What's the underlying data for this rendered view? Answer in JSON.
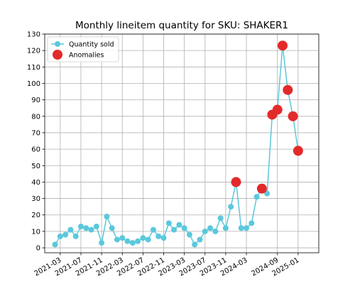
{
  "chart_data": {
    "type": "line",
    "title": "Monthly lineitem quantity for SKU: SHAKER1",
    "xlabel": "",
    "ylabel": "",
    "ylim": [
      -3,
      130
    ],
    "yticks": [
      0,
      10,
      20,
      30,
      40,
      50,
      60,
      70,
      80,
      90,
      100,
      110,
      120,
      130
    ],
    "xlim": [
      "2020-12",
      "2025-05"
    ],
    "xticks": [
      "2021-03",
      "2021-07",
      "2021-11",
      "2022-03",
      "2022-07",
      "2022-11",
      "2023-03",
      "2023-07",
      "2023-11",
      "2024-03",
      "2024-09",
      "2025-01"
    ],
    "grid": true,
    "legend_position": "top-left",
    "colors": {
      "line": "#5bc8dc",
      "anomaly": "#e32a2a",
      "grid": "#b0b0b0"
    },
    "series": [
      {
        "name": "Quantity sold",
        "points": [
          [
            "2021-02",
            2
          ],
          [
            "2021-03",
            7
          ],
          [
            "2021-04",
            8
          ],
          [
            "2021-05",
            11
          ],
          [
            "2021-06",
            7
          ],
          [
            "2021-07",
            13
          ],
          [
            "2021-08",
            12
          ],
          [
            "2021-09",
            11
          ],
          [
            "2021-10",
            13
          ],
          [
            "2021-11",
            3
          ],
          [
            "2021-12",
            19
          ],
          [
            "2022-01",
            12
          ],
          [
            "2022-02",
            5
          ],
          [
            "2022-03",
            6
          ],
          [
            "2022-04",
            4
          ],
          [
            "2022-05",
            3
          ],
          [
            "2022-06",
            4
          ],
          [
            "2022-07",
            6
          ],
          [
            "2022-08",
            5
          ],
          [
            "2022-09",
            11
          ],
          [
            "2022-10",
            7
          ],
          [
            "2022-11",
            6
          ],
          [
            "2022-12",
            15
          ],
          [
            "2023-01",
            11
          ],
          [
            "2023-02",
            14
          ],
          [
            "2023-03",
            12
          ],
          [
            "2023-04",
            8
          ],
          [
            "2023-05",
            2
          ],
          [
            "2023-06",
            5
          ],
          [
            "2023-07",
            10
          ],
          [
            "2023-08",
            12
          ],
          [
            "2023-09",
            10
          ],
          [
            "2023-10",
            18
          ],
          [
            "2023-11",
            12
          ],
          [
            "2023-12",
            25
          ],
          [
            "2024-01",
            40
          ],
          [
            "2024-02",
            12
          ],
          [
            "2024-03",
            12
          ],
          [
            "2024-04",
            15
          ],
          [
            "2024-05",
            31
          ],
          [
            "2024-06",
            36
          ],
          [
            "2024-07",
            33
          ],
          [
            "2024-08",
            81
          ],
          [
            "2024-09",
            84
          ],
          [
            "2024-10",
            123
          ],
          [
            "2024-11",
            96
          ],
          [
            "2024-12",
            80
          ],
          [
            "2025-01",
            59
          ]
        ]
      },
      {
        "name": "Anomalies",
        "points": [
          [
            "2024-01",
            40
          ],
          [
            "2024-06",
            36
          ],
          [
            "2024-08",
            81
          ],
          [
            "2024-09",
            84
          ],
          [
            "2024-10",
            123
          ],
          [
            "2024-11",
            96
          ],
          [
            "2024-12",
            80
          ],
          [
            "2025-01",
            59
          ]
        ]
      }
    ]
  }
}
